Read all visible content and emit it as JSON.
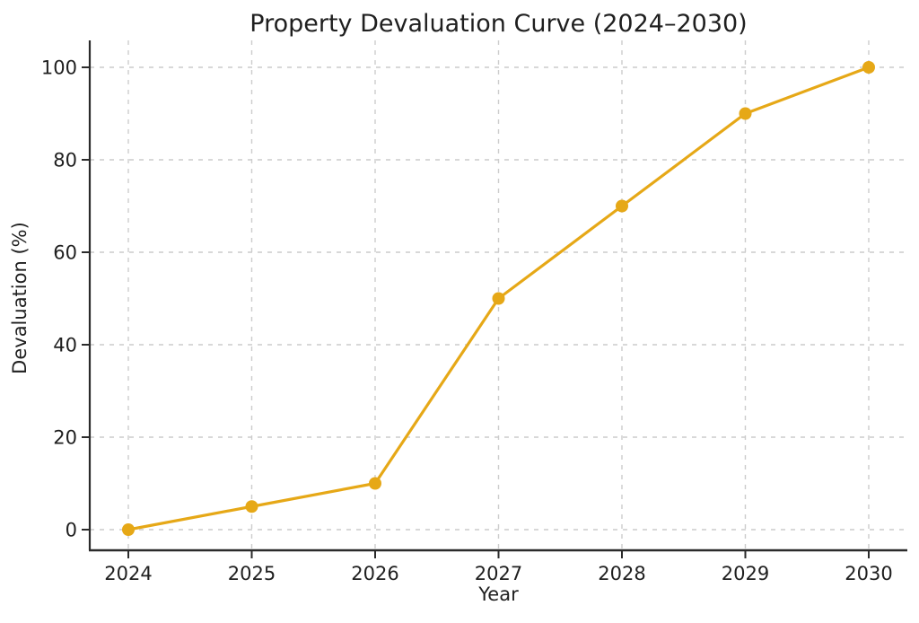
{
  "chart_data": {
    "type": "line",
    "title": "Property Devaluation Curve (2024–2030)",
    "xlabel": "Year",
    "ylabel": "Devaluation (%)",
    "categories": [
      2024,
      2025,
      2026,
      2027,
      2028,
      2029,
      2030
    ],
    "series": [
      {
        "name": "Devaluation",
        "values": [
          0,
          5,
          10,
          50,
          70,
          90,
          100
        ]
      }
    ],
    "ylim": [
      0,
      100
    ],
    "yticks": [
      0,
      20,
      40,
      60,
      80,
      100
    ],
    "grid": true,
    "grid_style": "dashed",
    "legend": "none",
    "colors": {
      "line": "#E6A817",
      "marker": "#E6A817",
      "grid": "#cccccc",
      "spine": "#2b2b2b",
      "text": "#1f1f1f"
    }
  }
}
